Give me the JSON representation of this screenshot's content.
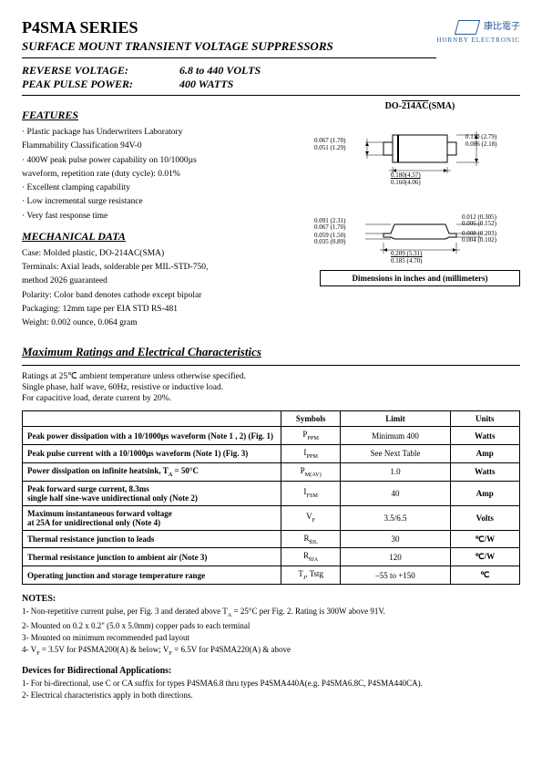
{
  "header": {
    "series": "P4SMA SERIES",
    "subtitle": "SURFACE MOUNT TRANSIENT VOLTAGE SUPPRESSORS",
    "reverse_voltage_label": "REVERSE VOLTAGE:",
    "reverse_voltage_value": "6.8 to 440 VOLTS",
    "peak_power_label": "PEAK PULSE POWER:",
    "peak_power_value": "400 WATTS",
    "logo_cn": "康比電子",
    "logo_en": "HORNBY ELECTRONIC"
  },
  "features": {
    "heading": "FEATURES",
    "items": [
      "· Plastic package has Underwriters Laboratory",
      "  Flammability Classification 94V-0",
      "· 400W peak pulse power capability on 10/1000µs",
      "  waveform, repetition rate (duty cycle): 0.01%",
      "· Excellent clamping capability",
      "· Low incremental surge resistance",
      "· Very fast response time"
    ]
  },
  "mech": {
    "heading": "MECHANICAL DATA",
    "lines": [
      "Case: Molded plastic, DO-214AC(SMA)",
      "Terminals: Axial leads, solderable per MIL-STD-750,",
      "method 2026 guaranteed",
      "Polarity: Color band denotes cathode except bipolar",
      "Packaging: 12mm tape per EIA STD RS-481",
      "Weight: 0.002 ounce, 0.064 gram"
    ]
  },
  "package": {
    "label_prefix": "DO-",
    "label_mid": "214AC",
    "label_suffix": "(SMA)",
    "dims_top": {
      "d1a": "0.067 (1.70)",
      "d1b": "0.051 (1.29)",
      "d2a": "0.110 (2.79)",
      "d2b": "0.086 (2.18)",
      "d3a": "0.180(4.57)",
      "d3b": "0.160(4.06)"
    },
    "dims_side": {
      "s1a": "0.091 (2.31)",
      "s1b": "0.067 (1.70)",
      "s2a": "0.059 (1.50)",
      "s2b": "0.035 (0.89)",
      "s3a": "0.012 (0.305)",
      "s3b": "0.006 (0.152)",
      "s4a": "0.008 (0.203)",
      "s4b": "0.004 (0.102)",
      "s5a": "0.209 (5.31)",
      "s5b": "0.185 (4.70)"
    },
    "dim_note": "Dimensions in inches and (millimeters)"
  },
  "ratings": {
    "heading": "Maximum Ratings and Electrical Characteristics",
    "intro": [
      "Ratings at 25℃ ambient temperature unless otherwise specified.",
      "Single phase, half wave, 60Hz, resistive or inductive load.",
      "For capacitive load, derate current by 20%."
    ],
    "columns": [
      "",
      "Symbols",
      "Limit",
      "Units"
    ],
    "rows": [
      {
        "param": "Peak power dissipation with a 10/1000µs waveform (Note 1 , 2) (Fig. 1)",
        "sym": "P<sub>PPM</sub>",
        "lim": "Minimum 400",
        "unit": "Watts"
      },
      {
        "param": "Peak pulse current with a 10/1000µs waveform (Note 1) (Fig. 3)",
        "sym": "I<sub>PPM</sub>",
        "lim": "See Next Table",
        "unit": "Amp"
      },
      {
        "param": "Power dissipation on infinite heatsink, T<sub>A</sub> = 50°C",
        "sym": "P<sub>M(AV)</sub>",
        "lim": "1.0",
        "unit": "Watts"
      },
      {
        "param": "Peak forward surge current, 8.3ms<br>single half sine-wave unidirectional only (Note 2)",
        "sym": "I<sub>FSM</sub>",
        "lim": "40",
        "unit": "Amp"
      },
      {
        "param": "Maximum instantaneous forward voltage<br>at 25A for unidirectional only (Note 4)",
        "sym": "V<sub>F</sub>",
        "lim": "3.5/6.5",
        "unit": "Volts"
      },
      {
        "param": "Thermal resistance junction to leads",
        "sym": "R<sub>θJL</sub>",
        "lim": "30",
        "unit": "℃/W"
      },
      {
        "param": "Thermal resistance junction to ambient air (Note 3)",
        "sym": "R<sub>θJA</sub>",
        "lim": "120",
        "unit": "℃/W"
      },
      {
        "param": "Operating junction and storage temperature range",
        "sym": "T<sub>J</sub>,  Tstg",
        "lim": "–55 to +150",
        "unit": "℃"
      }
    ]
  },
  "notes": {
    "heading": "NOTES:",
    "items": [
      "1- Non-repetitive current pulse, per Fig. 3 and derated above T<sub>A</sub> = 25°C per Fig. 2. Rating is 300W above 91V.",
      "2- Mounted on 0.2 x 0.2\" (5.0 x 5.0mm) copper pads to each terminal",
      "3- Mounted on minimum recommended pad layout",
      "4- V<sub>F</sub> = 3.5V for P4SMA200(A) & below; V<sub>F</sub> = 6.5V for P4SMA220(A) & above"
    ]
  },
  "bidir": {
    "heading": "Devices for Bidirectional Applications:",
    "items": [
      "1- For bi-directional, use C or CA suffix for types P4SMA6.8 thru types P4SMA440A(e.g. P4SMA6.8C, P4SMA440CA).",
      "2- Electrical characteristics apply in both directions."
    ]
  },
  "colors": {
    "text": "#000000",
    "logo": "#2a5a9a"
  }
}
